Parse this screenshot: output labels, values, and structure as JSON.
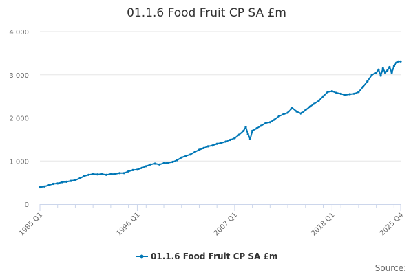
{
  "chart_data": {
    "type": "line",
    "title": "01.1.6 Food Fruit CP SA £m",
    "xlabel": "",
    "ylabel": "",
    "ylim": [
      0,
      4000
    ],
    "y_ticks": [
      "0",
      "1 000",
      "2 000",
      "3 000",
      "4 000"
    ],
    "y_tick_values": [
      0,
      1000,
      2000,
      3000,
      4000
    ],
    "x_ticks": [
      "1985 Q1",
      "1996 Q1",
      "2007 Q1",
      "2018 Q1",
      "2025 Q4"
    ],
    "x_tick_values": [
      1985.0,
      1996.0,
      2007.0,
      2018.0,
      2025.75
    ],
    "grid": true,
    "legend_position": "bottom-center",
    "series": [
      {
        "name": "01.1.6 Food Fruit CP SA £m",
        "color": "#0077b6",
        "x": [
          1985.0,
          1985.5,
          1986.0,
          1986.5,
          1987.0,
          1987.5,
          1988.0,
          1988.5,
          1989.0,
          1989.5,
          1990.0,
          1990.5,
          1991.0,
          1991.5,
          1992.0,
          1992.5,
          1993.0,
          1993.5,
          1994.0,
          1994.5,
          1995.0,
          1995.5,
          1996.0,
          1996.5,
          1997.0,
          1997.5,
          1998.0,
          1998.5,
          1999.0,
          1999.5,
          2000.0,
          2000.5,
          2001.0,
          2001.5,
          2002.0,
          2002.5,
          2003.0,
          2003.5,
          2004.0,
          2004.5,
          2005.0,
          2005.5,
          2006.0,
          2006.5,
          2007.0,
          2007.5,
          2008.0,
          2008.25,
          2008.5,
          2008.75,
          2009.0,
          2009.5,
          2010.0,
          2010.5,
          2011.0,
          2011.5,
          2012.0,
          2012.5,
          2013.0,
          2013.5,
          2014.0,
          2014.5,
          2015.0,
          2015.5,
          2016.0,
          2016.5,
          2017.0,
          2017.5,
          2018.0,
          2018.5,
          2019.0,
          2019.5,
          2020.0,
          2020.5,
          2021.0,
          2021.5,
          2022.0,
          2022.5,
          2023.0,
          2023.25,
          2023.5,
          2023.75,
          2024.0,
          2024.25,
          2024.5,
          2024.75,
          2025.0,
          2025.25,
          2025.5,
          2025.75
        ],
        "values": [
          390,
          410,
          440,
          470,
          480,
          510,
          520,
          540,
          560,
          600,
          650,
          680,
          700,
          690,
          700,
          680,
          700,
          700,
          720,
          720,
          760,
          790,
          800,
          840,
          880,
          920,
          940,
          920,
          950,
          960,
          980,
          1020,
          1080,
          1120,
          1150,
          1210,
          1260,
          1300,
          1340,
          1360,
          1400,
          1420,
          1450,
          1490,
          1530,
          1610,
          1700,
          1790,
          1620,
          1510,
          1700,
          1760,
          1820,
          1880,
          1900,
          1960,
          2040,
          2080,
          2120,
          2230,
          2150,
          2100,
          2180,
          2260,
          2330,
          2400,
          2500,
          2600,
          2620,
          2580,
          2560,
          2530,
          2550,
          2560,
          2600,
          2720,
          2850,
          3000,
          3050,
          3120,
          2980,
          3150,
          3050,
          3100,
          3180,
          3050,
          3200,
          3280,
          3310,
          3310
        ]
      }
    ],
    "credits": "Source:"
  }
}
